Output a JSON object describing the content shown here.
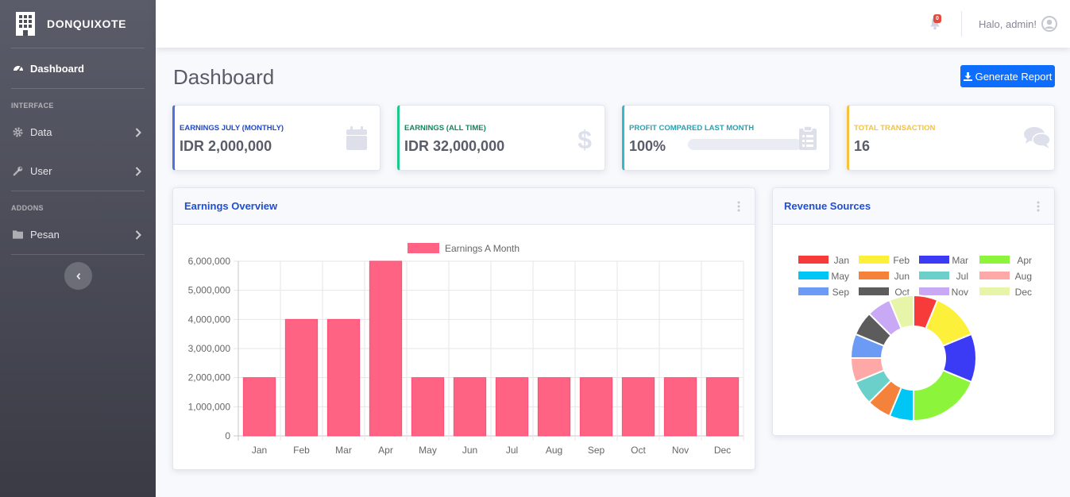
{
  "brand": {
    "name": "DONQUIXOTE"
  },
  "sidebar": {
    "items": [
      {
        "label": "Dashboard"
      }
    ],
    "interface_heading": "INTERFACE",
    "interface_items": [
      {
        "label": "Data"
      },
      {
        "label": "User"
      }
    ],
    "addons_heading": "ADDONS",
    "addons_items": [
      {
        "label": "Pesan"
      }
    ]
  },
  "topbar": {
    "notification_count": "0",
    "greeting": "Halo, admin!"
  },
  "page": {
    "title": "Dashboard",
    "report_button": "Generate Report"
  },
  "colors": {
    "primary": "#0d6efd",
    "blue": "#4e73df",
    "green": "#1cc88a",
    "teal": "#36b9cc",
    "yellow": "#f6c23e",
    "bar": "#ff6384"
  },
  "stats": [
    {
      "label": "EARNINGS JULY (MONTHLY)",
      "value": "IDR 2,000,000",
      "icon": "calendar-icon"
    },
    {
      "label": "EARNINGS (ALL TIME)",
      "value": "IDR 32,000,000",
      "icon": "dollar-icon"
    },
    {
      "label": "PROFIT COMPARED LAST MONTH",
      "value": "100%",
      "progress": 0,
      "icon": "clipboard-icon"
    },
    {
      "label": "TOTAL TRANSACTION",
      "value": "16",
      "icon": "comments-icon"
    }
  ],
  "earnings_panel": {
    "title": "Earnings Overview"
  },
  "revenue_panel": {
    "title": "Revenue Sources"
  },
  "chart_data": [
    {
      "type": "bar",
      "title": "Earnings Overview",
      "legend": "Earnings A Month",
      "categories": [
        "Jan",
        "Feb",
        "Mar",
        "Apr",
        "May",
        "Jun",
        "Jul",
        "Aug",
        "Sep",
        "Oct",
        "Nov",
        "Dec"
      ],
      "values": [
        2000000,
        4000000,
        4000000,
        6000000,
        2000000,
        2000000,
        2000000,
        2000000,
        2000000,
        2000000,
        2000000,
        2000000
      ],
      "ylim": [
        0,
        6000000
      ],
      "yticks": [
        "0",
        "1,000,000",
        "2,000,000",
        "3,000,000",
        "4,000,000",
        "5,000,000",
        "6,000,000"
      ],
      "grid": true
    },
    {
      "type": "pie",
      "title": "Revenue Sources",
      "donut": true,
      "categories": [
        "Jan",
        "Feb",
        "Mar",
        "Apr",
        "May",
        "Jun",
        "Jul",
        "Aug",
        "Sep",
        "Oct",
        "Nov",
        "Dec"
      ],
      "values": [
        2000000,
        4000000,
        4000000,
        6000000,
        2000000,
        2000000,
        2000000,
        2000000,
        2000000,
        2000000,
        2000000,
        2000000
      ],
      "colors": [
        "#f73b3b",
        "#fdf03b",
        "#3b3bf5",
        "#8cf53b",
        "#00c6f5",
        "#f5823b",
        "#6bcfca",
        "#ffa8a8",
        "#6b9bf5",
        "#5c5c5c",
        "#c9a8f5",
        "#e6f5a8"
      ]
    }
  ]
}
